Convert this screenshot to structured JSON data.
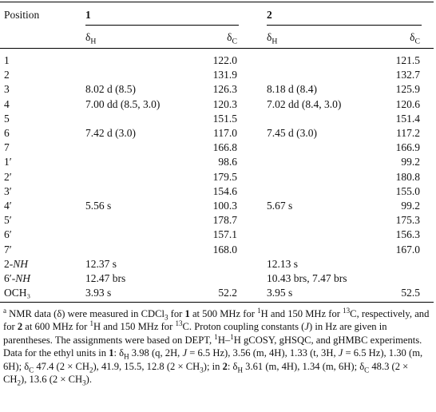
{
  "header": {
    "position": "Position",
    "compounds": [
      "1",
      "2"
    ],
    "subheaders": [
      [
        "δ",
        "H"
      ],
      [
        "δ",
        "C"
      ],
      [
        "δ",
        "H"
      ],
      [
        "δ",
        "C"
      ]
    ]
  },
  "table": {
    "rows": [
      [
        "1",
        null,
        "122.0",
        null,
        "121.5"
      ],
      [
        "2",
        null,
        "131.9",
        null,
        "132.7"
      ],
      [
        "3",
        "8.02 d (8.5)",
        "126.3",
        "8.18 d (8.4)",
        "125.9"
      ],
      [
        "4",
        "7.00 dd (8.5, 3.0)",
        "120.3",
        "7.02 dd (8.4, 3.0)",
        "120.6"
      ],
      [
        "5",
        null,
        "151.5",
        null,
        "151.4"
      ],
      [
        "6",
        "7.42 d (3.0)",
        "117.0",
        "7.45 d (3.0)",
        "117.2"
      ],
      [
        "7",
        null,
        "166.8",
        null,
        "166.9"
      ],
      [
        "1′",
        null,
        "98.6",
        null,
        "99.2"
      ],
      [
        "2′",
        null,
        "179.5",
        null,
        "180.8"
      ],
      [
        "3′",
        null,
        "154.6",
        null,
        "155.0"
      ],
      [
        "4′",
        "5.56 s",
        "100.3",
        "5.67 s",
        "99.2"
      ],
      [
        "5′",
        null,
        "178.7",
        null,
        "175.3"
      ],
      [
        "6′",
        null,
        "157.1",
        null,
        "156.3"
      ],
      [
        "7′",
        null,
        "168.0",
        null,
        "167.0"
      ],
      [
        [
          "2-",
          "NH"
        ],
        "12.37 s",
        null,
        "12.13 s",
        null
      ],
      [
        [
          "6′-",
          "NH"
        ],
        "12.47 brs",
        null,
        "10.43 brs, 7.47 brs",
        null
      ],
      [
        "OCH₃",
        "3.93 s",
        "52.2",
        "3.95 s",
        "52.5"
      ]
    ]
  },
  "footnote": [
    "a",
    " NMR data (δ) were measured in CDCl",
    "3",
    " for ",
    "1",
    " at 500 MHz for ",
    "1",
    "H and 150 MHz for ",
    "13",
    "C, respectively, and for ",
    "2",
    " at 600 MHz for ",
    "1",
    "H and 150 MHz for ",
    "13",
    "C. Proton coupling constants (",
    "J",
    ") in Hz are given in parentheses. The assignments were based on DEPT, ",
    "1",
    "H–",
    "1",
    "H gCOSY, gHSQC, and gHMBC experiments. Data for the ethyl units in ",
    "1",
    ": δ",
    "H",
    " 3.98 (q, 2H, ",
    "J",
    " = 6.5 Hz), 3.56 (m, 4H), 1.33 (t, 3H, ",
    "J",
    " = 6.5 Hz), 1.30 (m, 6H); δ",
    "C",
    " 47.4 (2 × CH",
    "2",
    "), 41.9, 15.5, 12.8 (2 × CH",
    "3",
    "); in ",
    "2",
    ": δ",
    "H",
    " 3.61 (m, 4H), 1.34 (m, 6H); δ",
    "C",
    " 48.3 (2 × CH",
    "2",
    "), 13.6 (2 × CH",
    "3",
    ")."
  ]
}
